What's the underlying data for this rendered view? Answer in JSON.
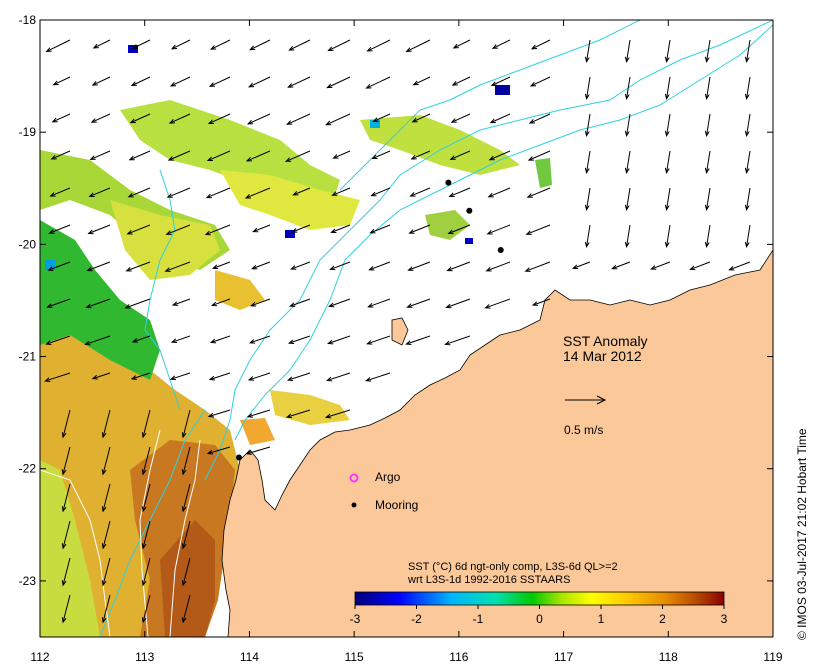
{
  "map": {
    "x_ticks": [
      "112",
      "113",
      "114",
      "115",
      "116",
      "117",
      "118",
      "119"
    ],
    "y_ticks": [
      "-18",
      "-19",
      "-20",
      "-21",
      "-22",
      "-23"
    ],
    "title_line1": "SST Anomaly",
    "title_line2": "14 Mar 2012",
    "vector_scale_label": "0.5 m/s",
    "legend_argo": "Argo",
    "legend_mooring": "Mooring",
    "colorbar_caption_line1": "SST (°C) 6d ngt-only comp, L3S-6d QL>=2",
    "colorbar_caption_line2": "wrt L3S-1d 1992-2016 SSTAARS",
    "colorbar_ticks": [
      "-3",
      "-2",
      "-1",
      "0",
      "1",
      "2",
      "3"
    ],
    "credit": "© IMOS 03-Jul-2017 21:02 Hobart Time",
    "colors": {
      "land": "#fbc89a",
      "current_line": "#2fd0e0",
      "argo": "#ff33ff",
      "anomaly_scale": [
        "#00007a",
        "#0000ff",
        "#00b4ff",
        "#00e0b0",
        "#00c800",
        "#aae600",
        "#ffff00",
        "#ffc800",
        "#e68c00",
        "#b44600",
        "#8c0000"
      ]
    },
    "moorings_lonlat": [
      [
        115.9,
        -19.45
      ],
      [
        116.1,
        -19.7
      ],
      [
        116.4,
        -20.05
      ],
      [
        113.9,
        -21.9
      ]
    ]
  }
}
